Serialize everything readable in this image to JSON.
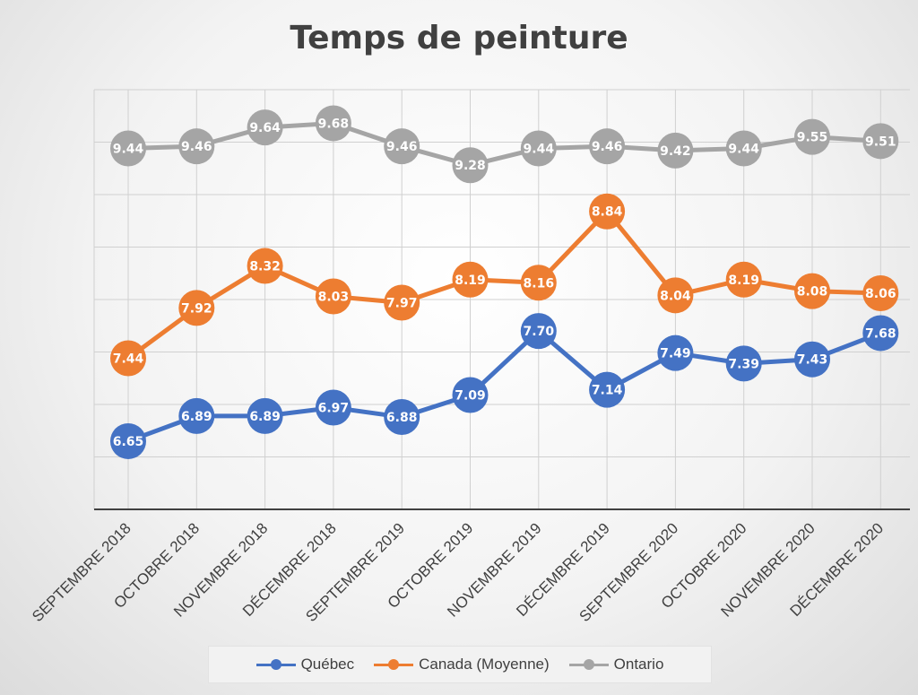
{
  "chart_data": {
    "type": "line",
    "title": "Temps de peinture",
    "xlabel": "",
    "ylabel": "",
    "ylim": [
      6.0,
      10.0
    ],
    "grid": true,
    "legend_position": "bottom",
    "categories": [
      "SEPTEMBRE 2018",
      "OCTOBRE 2018",
      "NOVEMBRE 2018",
      "DÉCEMBRE 2018",
      "SEPTEMBRE 2019",
      "OCTOBRE 2019",
      "NOVEMBRE 2019",
      "DÉCEMBRE 2019",
      "SEPTEMBRE 2020",
      "OCTOBRE 2020",
      "NOVEMBRE 2020",
      "DÉCEMBRE 2020"
    ],
    "series": [
      {
        "name": "Québec",
        "color": "#4472c4",
        "values": [
          6.65,
          6.89,
          6.89,
          6.97,
          6.88,
          7.09,
          7.7,
          7.14,
          7.49,
          7.39,
          7.43,
          7.68
        ],
        "labels": [
          "6.65",
          "6.89",
          "6.89",
          "6.97",
          "6.88",
          "7.09",
          "7.70",
          "7.14",
          "7.49",
          "7.39",
          "7.43",
          "7.68"
        ]
      },
      {
        "name": "Canada (Moyenne)",
        "color": "#ed7d31",
        "values": [
          7.44,
          7.92,
          8.32,
          8.03,
          7.97,
          8.19,
          8.16,
          8.84,
          8.04,
          8.19,
          8.08,
          8.06
        ],
        "labels": [
          "7.44",
          "7.92",
          "8.32",
          "8.03",
          "7.97",
          "8.19",
          "8.16",
          "8.84",
          "8.04",
          "8.19",
          "8.08",
          "8.06"
        ]
      },
      {
        "name": "Ontario",
        "color": "#a5a5a5",
        "values": [
          9.44,
          9.46,
          9.64,
          9.68,
          9.46,
          9.28,
          9.44,
          9.46,
          9.42,
          9.44,
          9.55,
          9.51
        ],
        "labels": [
          "9.44",
          "9.46",
          "9.64",
          "9.68",
          "9.46",
          "9.28",
          "9.44",
          "9.46",
          "9.42",
          "9.44",
          "9.55",
          "9.51"
        ]
      }
    ]
  }
}
